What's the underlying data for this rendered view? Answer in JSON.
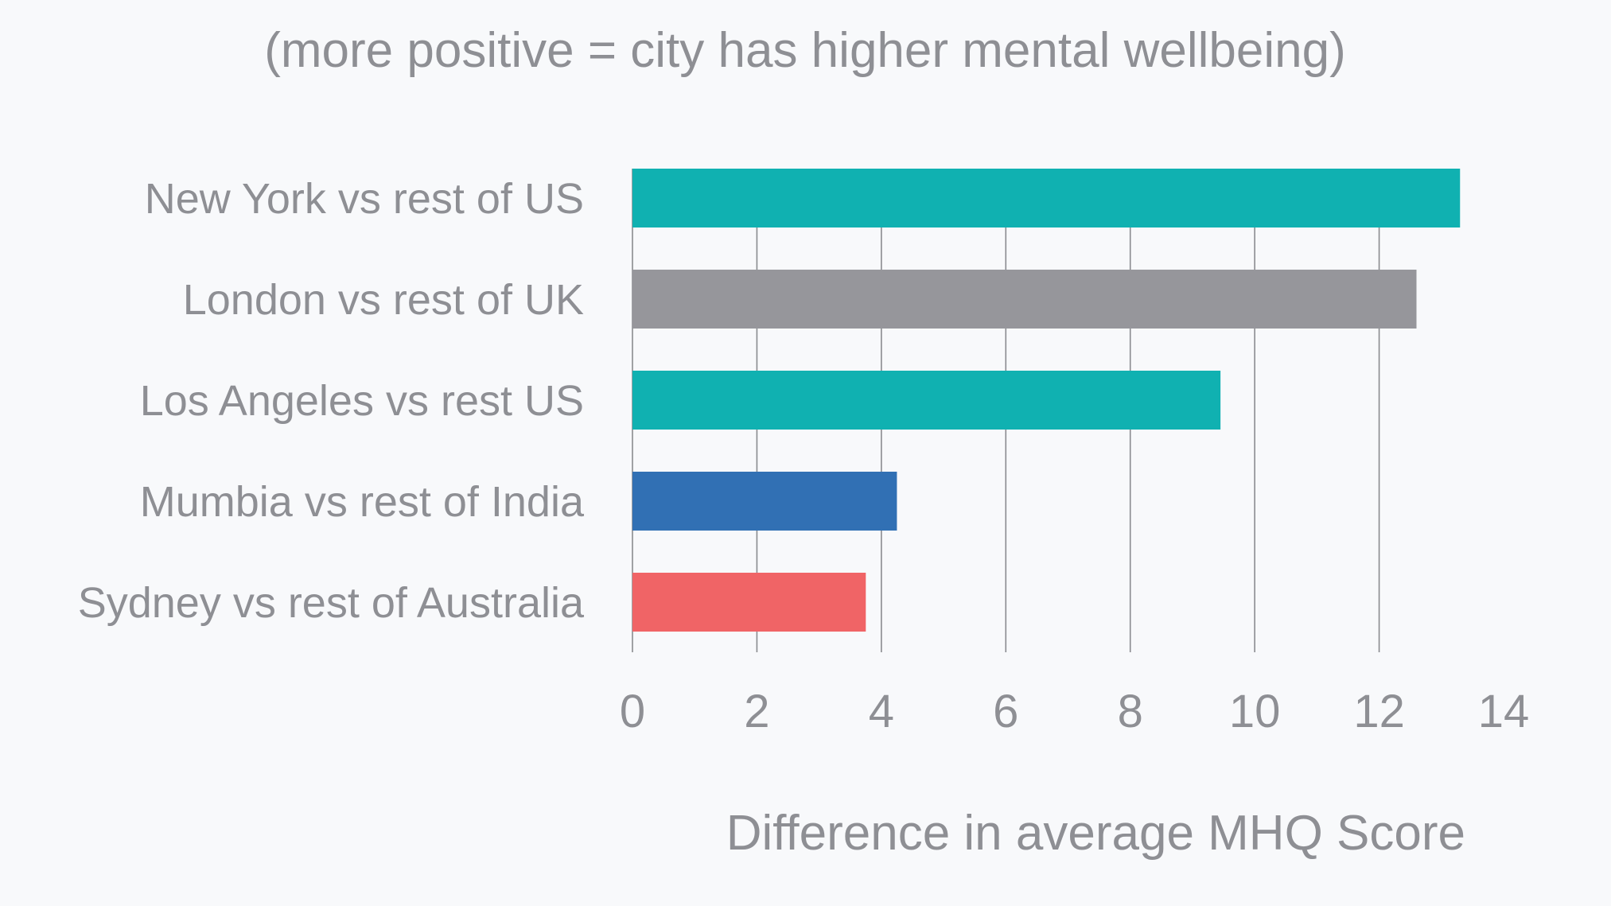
{
  "chart_data": {
    "type": "bar",
    "orientation": "horizontal",
    "title": "",
    "subtitle": "(more positive = city has higher mental wellbeing)",
    "xlabel": "Difference in average MHQ Score",
    "ylabel": "",
    "xlim": [
      0,
      14
    ],
    "xticks": [
      0,
      2,
      4,
      6,
      8,
      10,
      12,
      14
    ],
    "grid": true,
    "categories": [
      "New York vs rest of US",
      "London vs rest of UK",
      "Los Angeles vs rest US",
      "Mumbia vs rest of India",
      "Sydney vs rest of Australia"
    ],
    "values": [
      13.3,
      12.6,
      9.45,
      4.25,
      3.75
    ],
    "colors": [
      "#10b1b1",
      "#96969b",
      "#10b1b1",
      "#3170b4",
      "#f06466"
    ]
  }
}
